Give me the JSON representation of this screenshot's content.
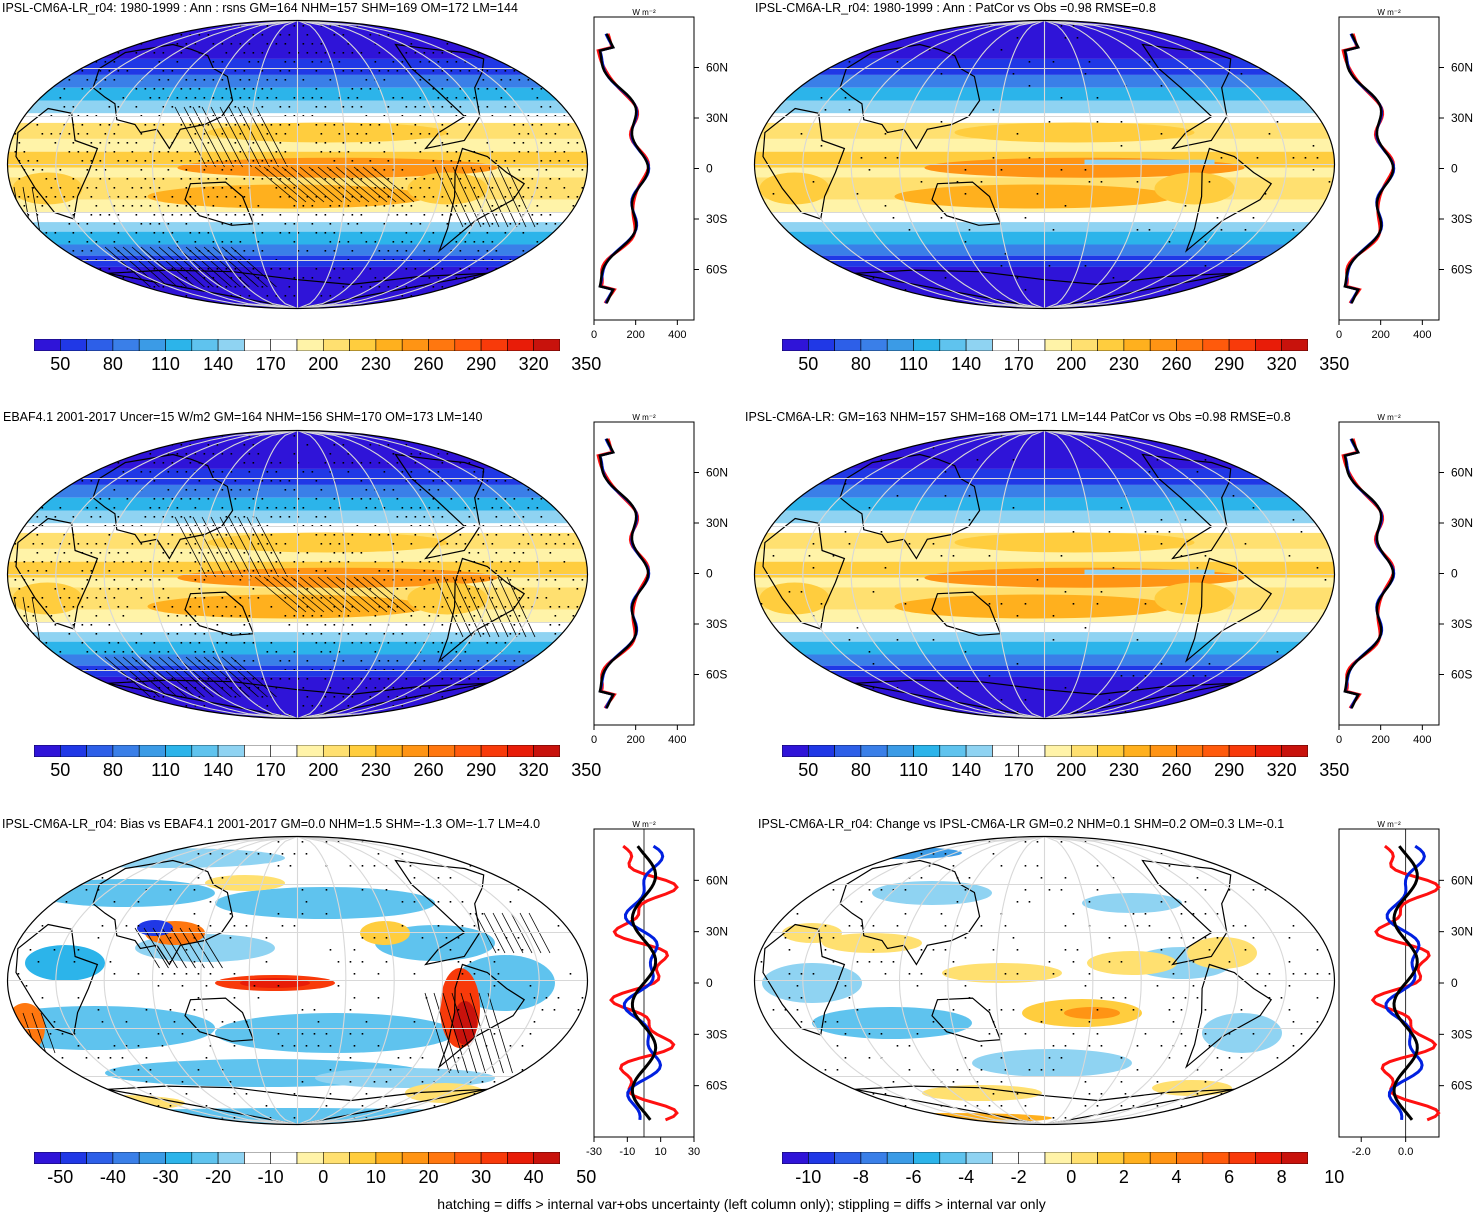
{
  "panels": [
    {
      "id": "p1",
      "title": "IPSL-CM6A-LR_r04: 1980-1999 : Ann : rsns GM=164 NHM=157 SHM=169 OM=172 LM=144",
      "type": "absolute",
      "hatching": true,
      "stippling": true,
      "profile": {
        "unit": "W m⁻²",
        "xticks": [
          "0",
          "200",
          "400"
        ],
        "xlim": [
          0,
          480
        ]
      },
      "colorbar_labels": [
        "50",
        "80",
        "110",
        "140",
        "170",
        "200",
        "230",
        "260",
        "290",
        "320",
        "350"
      ]
    },
    {
      "id": "p2",
      "title": "IPSL-CM6A-LR_r04: 1980-1999 : Ann : PatCor vs Obs =0.98 RMSE=0.8",
      "type": "absolute",
      "hatching": false,
      "stippling": true,
      "profile": {
        "unit": "W m⁻²",
        "xticks": [
          "0",
          "200",
          "400"
        ],
        "xlim": [
          0,
          480
        ]
      },
      "colorbar_labels": [
        "50",
        "80",
        "110",
        "140",
        "170",
        "200",
        "230",
        "260",
        "290",
        "320",
        "350"
      ]
    },
    {
      "id": "p3",
      "title": "EBAF4.1 2001-2017 Uncer=15 W/m2 GM=164 NHM=156 SHM=170 OM=173 LM=140",
      "type": "absolute",
      "hatching": true,
      "stippling": true,
      "profile": {
        "unit": "W m⁻²",
        "xticks": [
          "0",
          "200",
          "400"
        ],
        "xlim": [
          0,
          480
        ]
      },
      "colorbar_labels": [
        "50",
        "80",
        "110",
        "140",
        "170",
        "200",
        "230",
        "260",
        "290",
        "320",
        "350"
      ]
    },
    {
      "id": "p4",
      "title": "IPSL-CM6A-LR: GM=163 NHM=157 SHM=168 OM=171 LM=144 PatCor vs Obs =0.98 RMSE=0.8",
      "type": "absolute",
      "hatching": false,
      "stippling": true,
      "profile": {
        "unit": "W m⁻²",
        "xticks": [
          "0",
          "200",
          "400"
        ],
        "xlim": [
          0,
          480
        ]
      },
      "colorbar_labels": [
        "50",
        "80",
        "110",
        "140",
        "170",
        "200",
        "230",
        "260",
        "290",
        "320",
        "350"
      ]
    },
    {
      "id": "p5",
      "title": "IPSL-CM6A-LR_r04: Bias vs EBAF4.1 2001-2017 GM=0.0 NHM=1.5 SHM=-1.3 OM=-1.7 LM=4.0",
      "type": "bias",
      "hatching": true,
      "stippling": true,
      "profile": {
        "unit": "W m⁻²",
        "xticks": [
          "-30",
          "-10",
          "10",
          "30"
        ],
        "xlim": [
          -30,
          30
        ]
      },
      "colorbar_labels": [
        "-50",
        "-40",
        "-30",
        "-20",
        "-10",
        "0",
        "10",
        "20",
        "30",
        "40",
        "50"
      ]
    },
    {
      "id": "p6",
      "title": "IPSL-CM6A-LR_r04: Change vs IPSL-CM6A-LR GM=0.2 NHM=0.1 SHM=0.2 OM=0.3 LM=-0.1",
      "type": "change",
      "hatching": false,
      "stippling": true,
      "profile": {
        "unit": "W m⁻²",
        "xticks": [
          "-2.0",
          "0.0"
        ],
        "xlim": [
          -3,
          1.5
        ]
      },
      "colorbar_labels": [
        "-10",
        "-8",
        "-6",
        "-4",
        "-2",
        "0",
        "2",
        "4",
        "6",
        "8",
        "10"
      ]
    }
  ],
  "lat_labels": [
    "60N",
    "30N",
    "0",
    "30S",
    "60S"
  ],
  "colorbar_colors": [
    "#2f14d8",
    "#2038e6",
    "#2d5fe8",
    "#3a7fe8",
    "#3b9be6",
    "#2cb4ea",
    "#5fc3ee",
    "#8fd3f2",
    "#ffffff",
    "#ffffff",
    "#fff3a8",
    "#ffe070",
    "#ffcd3e",
    "#ffb01e",
    "#ff9414",
    "#ff770f",
    "#ff5a0c",
    "#f83a0a",
    "#e81c08",
    "#c8120c"
  ],
  "line_colors": {
    "model": "#0020e0",
    "obs": "#ff1010",
    "mean": "#000000"
  },
  "footnote": "hatching = diffs > internal var+obs uncertainty (left column only); stippling = diffs > internal var only"
}
